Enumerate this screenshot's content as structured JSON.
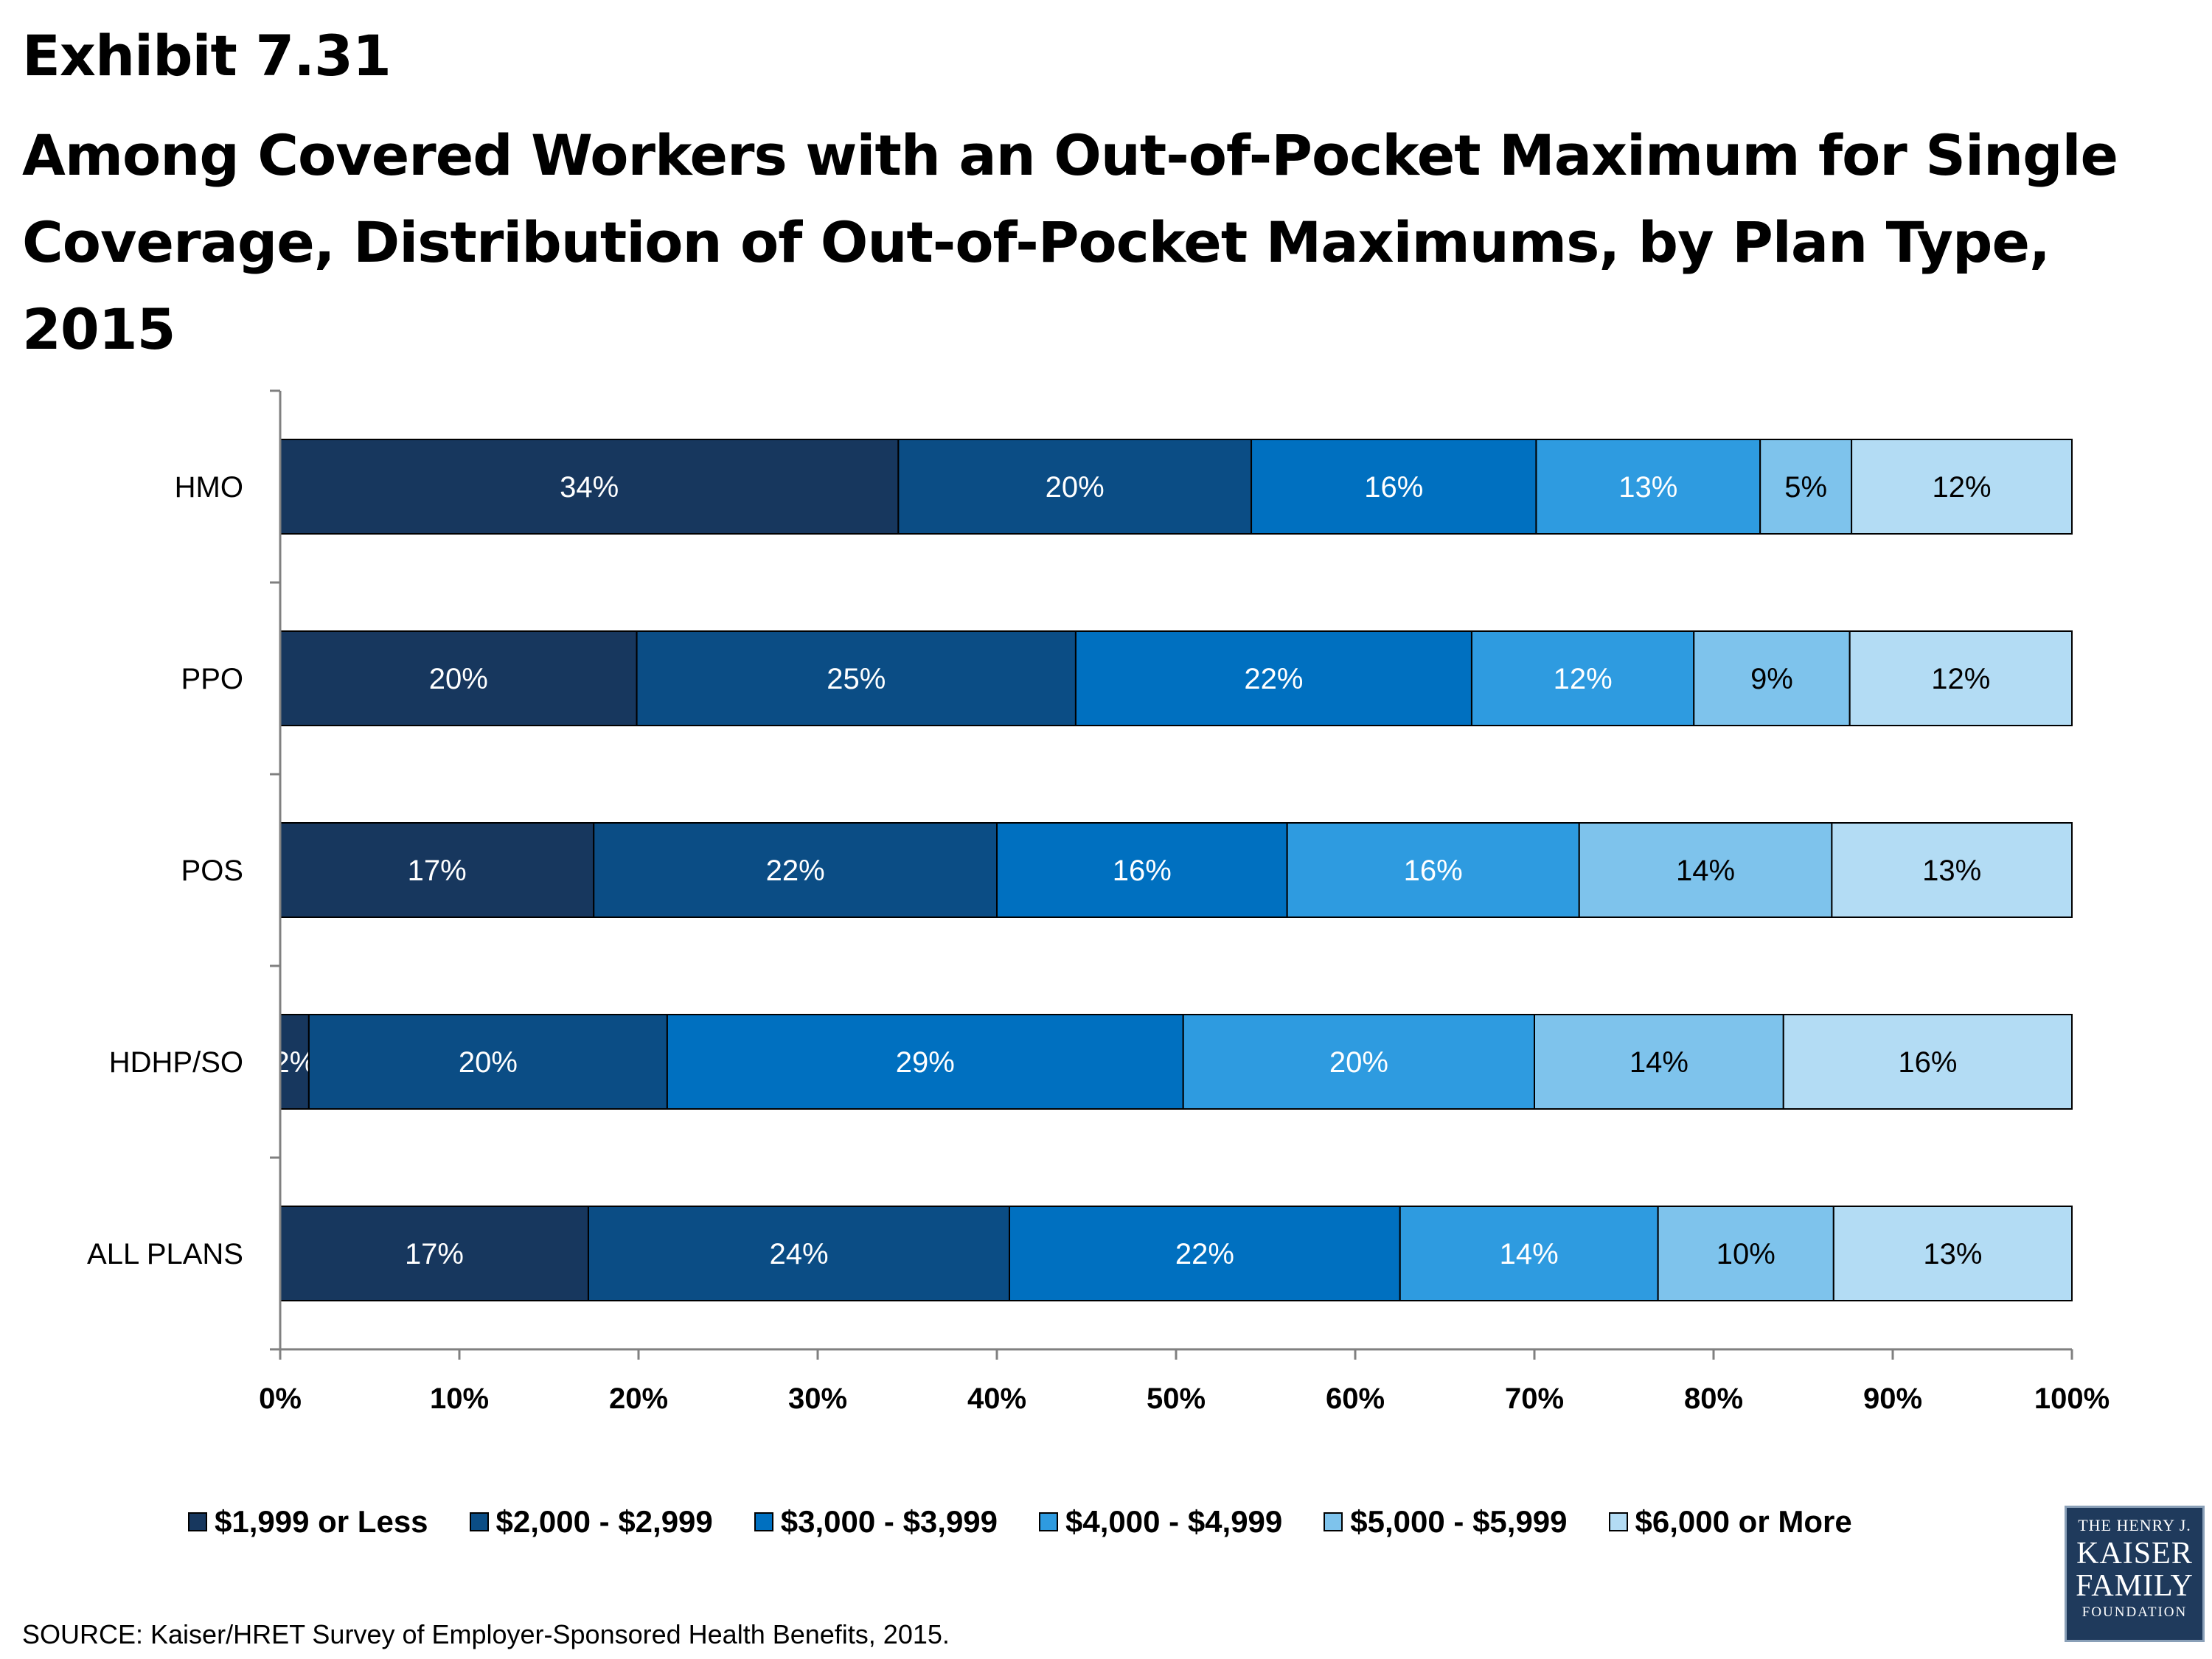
{
  "exhibit_label": "Exhibit 7.31",
  "title": "Among Covered Workers with an Out-of-Pocket Maximum for Single Coverage, Distribution of Out-of-Pocket Maximums, by Plan Type, 2015",
  "source": "SOURCE:  Kaiser/HRET Survey of Employer-Sponsored Health Benefits,  2015.",
  "logo": {
    "line1": "THE HENRY J.",
    "line2": "KAISER",
    "line3": "FAMILY",
    "line4": "FOUNDATION"
  },
  "colors": {
    "series": [
      "#17375e",
      "#0b4d85",
      "#0070c0",
      "#2e9be0",
      "#7ec3ec",
      "#b3dcf4"
    ],
    "label_light": "#ffffff",
    "label_dark": "#000000"
  },
  "chart_data": {
    "type": "bar",
    "orientation": "horizontal",
    "stacked": true,
    "categories": [
      "HMO",
      "PPO",
      "POS",
      "HDHP/SO",
      "ALL PLANS"
    ],
    "series": [
      {
        "name": "$1,999 or Less",
        "values": [
          34.5,
          19.9,
          17.5,
          1.6,
          17.2
        ],
        "labels": [
          "34%",
          "20%",
          "17%",
          "2%",
          "17%"
        ]
      },
      {
        "name": "$2,000 - $2,999",
        "values": [
          19.7,
          24.5,
          22.5,
          20.0,
          23.5
        ],
        "labels": [
          "20%",
          "25%",
          "22%",
          "20%",
          "24%"
        ]
      },
      {
        "name": "$3,000 - $3,999",
        "values": [
          15.9,
          22.1,
          16.2,
          28.8,
          21.8
        ],
        "labels": [
          "16%",
          "22%",
          "16%",
          "29%",
          "22%"
        ]
      },
      {
        "name": "$4,000 - $4,999",
        "values": [
          12.5,
          12.4,
          16.3,
          19.6,
          14.4
        ],
        "labels": [
          "13%",
          "12%",
          "16%",
          "20%",
          "14%"
        ]
      },
      {
        "name": "$5,000 - $5,999",
        "values": [
          5.1,
          8.7,
          14.1,
          13.9,
          9.8
        ],
        "labels": [
          "5%",
          "9%",
          "14%",
          "14%",
          "10%"
        ]
      },
      {
        "name": "$6,000 or More",
        "values": [
          12.3,
          12.4,
          13.4,
          16.1,
          13.3
        ],
        "labels": [
          "12%",
          "12%",
          "13%",
          "16%",
          "13%"
        ]
      }
    ],
    "xlim": [
      0,
      100
    ],
    "x_ticks": [
      "0%",
      "10%",
      "20%",
      "30%",
      "40%",
      "50%",
      "60%",
      "70%",
      "80%",
      "90%",
      "100%"
    ],
    "xlabel": "",
    "ylabel": "",
    "grid": false,
    "legend_position": "bottom"
  }
}
